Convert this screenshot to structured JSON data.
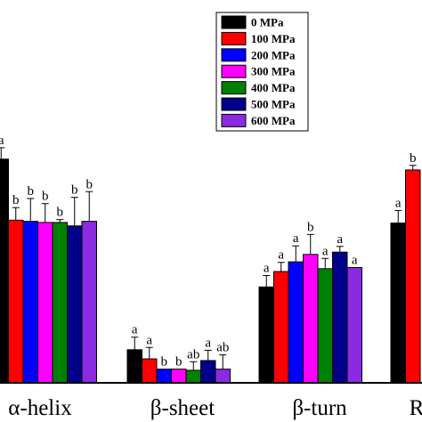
{
  "chart_data": {
    "type": "bar",
    "title": "",
    "xlabel": "",
    "ylabel": "",
    "ylim": [
      0,
      50
    ],
    "grid": false,
    "legend_position": "top-right",
    "categories": [
      "α-helix",
      "β-sheet",
      "β-turn",
      "R"
    ],
    "series": [
      {
        "name": "0 MPa",
        "color": "#000000",
        "values": [
          39.2,
          5.8,
          16.8,
          28.0
        ],
        "errors": [
          2.0,
          2.2,
          2.0,
          2.2
        ],
        "labels": [
          "a",
          "a",
          "a",
          "a"
        ]
      },
      {
        "name": "100 MPa",
        "color": "#ff0000",
        "values": [
          28.5,
          4.2,
          19.5,
          37.3
        ],
        "errors": [
          2.2,
          2.0,
          1.6,
          0.8
        ],
        "labels": [
          "b",
          "a",
          "a",
          "b"
        ]
      },
      {
        "name": "200 MPa",
        "color": "#0000ff",
        "values": [
          28.3,
          2.4,
          21.2,
          null
        ],
        "errors": [
          4.0,
          0,
          2.8,
          null
        ],
        "labels": [
          "b",
          "b",
          "a",
          ""
        ]
      },
      {
        "name": "300 MPa",
        "color": "#ff00ff",
        "values": [
          28.1,
          2.4,
          22.5,
          null
        ],
        "errors": [
          3.3,
          0,
          3.5,
          null
        ],
        "labels": [
          "b",
          "b",
          "b",
          ""
        ]
      },
      {
        "name": "400 MPa",
        "color": "#008000",
        "values": [
          28.1,
          2.2,
          20.0,
          null
        ],
        "errors": [
          0.5,
          1.5,
          1.8,
          null
        ],
        "labels": [
          "b",
          "ab",
          "a",
          ""
        ]
      },
      {
        "name": "500 MPa",
        "color": "#00008b",
        "values": [
          27.5,
          3.9,
          22.9,
          null
        ],
        "errors": [
          5.0,
          1.8,
          1.0,
          null
        ],
        "labels": [
          "b",
          "a",
          "a",
          ""
        ]
      },
      {
        "name": "600 MPa",
        "color": "#8a2be2",
        "values": [
          28.3,
          2.4,
          20.2,
          null
        ],
        "errors": [
          5.2,
          2.5,
          0,
          null
        ],
        "labels": [
          "b",
          "ab",
          "a",
          ""
        ]
      }
    ]
  }
}
